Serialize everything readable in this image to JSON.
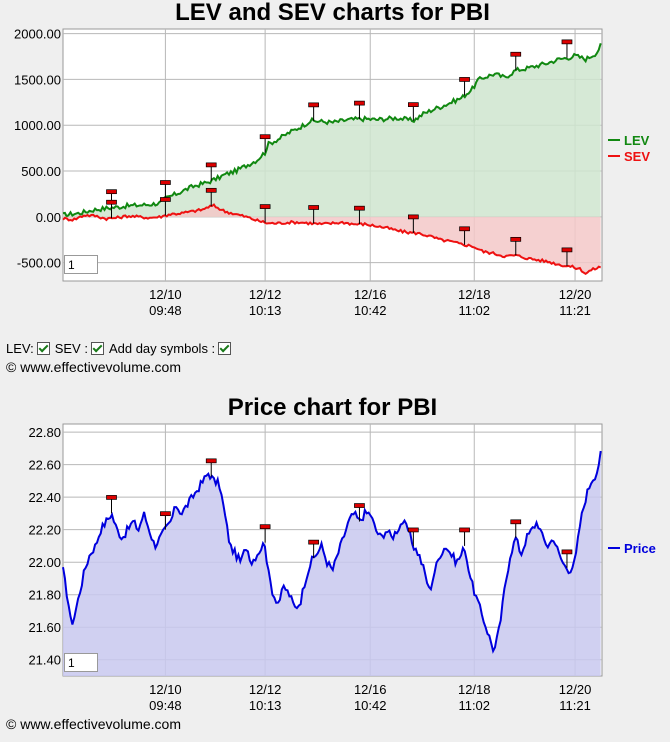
{
  "chart_data": [
    {
      "type": "line",
      "title": "LEV and SEV charts for PBI",
      "ylim": [
        -700,
        2050
      ],
      "yticks": [
        -500,
        0,
        500,
        1000,
        1500,
        2000
      ],
      "ytick_labels": [
        "-500.00",
        "0.00",
        "500.00",
        "1000.00",
        "1500.00",
        "2000.00"
      ],
      "xticks": [
        {
          "date": "12/10",
          "time": "09:48"
        },
        {
          "date": "12/12",
          "time": "10:13"
        },
        {
          "date": "12/16",
          "time": "10:42"
        },
        {
          "date": "12/18",
          "time": "11:02"
        },
        {
          "date": "12/20",
          "time": "11:21"
        }
      ],
      "x_range": [
        0,
        100
      ],
      "xtick_positions": [
        19,
        37.5,
        57,
        76.3,
        95
      ],
      "zoom_value": "1",
      "series": [
        {
          "name": "LEV",
          "color": "#118811",
          "fill": "#cfe5cf",
          "points": [
            [
              0,
              20
            ],
            [
              3,
              40
            ],
            [
              6,
              80
            ],
            [
              9,
              100
            ],
            [
              12,
              120
            ],
            [
              15,
              130
            ],
            [
              18,
              150
            ],
            [
              19,
              200
            ],
            [
              21,
              250
            ],
            [
              24,
              330
            ],
            [
              27,
              380
            ],
            [
              29,
              430
            ],
            [
              30,
              460
            ],
            [
              32,
              500
            ],
            [
              34,
              560
            ],
            [
              36,
              620
            ],
            [
              37,
              680
            ],
            [
              37.5,
              700
            ],
            [
              38,
              790
            ],
            [
              40,
              850
            ],
            [
              42,
              920
            ],
            [
              44,
              980
            ],
            [
              46,
              1050
            ],
            [
              48,
              1040
            ],
            [
              50,
              1030
            ],
            [
              53,
              1060
            ],
            [
              56,
              1070
            ],
            [
              58,
              1060
            ],
            [
              60,
              1070
            ],
            [
              62,
              1080
            ],
            [
              64,
              1060
            ],
            [
              65,
              1050
            ],
            [
              67,
              1130
            ],
            [
              69,
              1180
            ],
            [
              70,
              1200
            ],
            [
              72,
              1250
            ],
            [
              74,
              1300
            ],
            [
              76,
              1400
            ],
            [
              77,
              1490
            ],
            [
              78,
              1520
            ],
            [
              80,
              1560
            ],
            [
              82,
              1520
            ],
            [
              84,
              1600
            ],
            [
              86,
              1620
            ],
            [
              88,
              1650
            ],
            [
              90,
              1680
            ],
            [
              92,
              1720
            ],
            [
              94,
              1740
            ],
            [
              95,
              1760
            ],
            [
              97,
              1720
            ],
            [
              99,
              1790
            ],
            [
              100,
              1900
            ]
          ]
        },
        {
          "name": "SEV",
          "color": "#ee1111",
          "fill": "#f3c8c8",
          "points": [
            [
              0,
              -20
            ],
            [
              2,
              -30
            ],
            [
              4,
              20
            ],
            [
              6,
              10
            ],
            [
              8,
              -20
            ],
            [
              10,
              -10
            ],
            [
              12,
              10
            ],
            [
              14,
              0
            ],
            [
              16,
              -10
            ],
            [
              18,
              0
            ],
            [
              20,
              30
            ],
            [
              22,
              40
            ],
            [
              24,
              60
            ],
            [
              26,
              80
            ],
            [
              27,
              110
            ],
            [
              28,
              120
            ],
            [
              29,
              90
            ],
            [
              30,
              60
            ],
            [
              32,
              30
            ],
            [
              34,
              0
            ],
            [
              36,
              -40
            ],
            [
              38,
              -70
            ],
            [
              40,
              -70
            ],
            [
              42,
              -60
            ],
            [
              44,
              -60
            ],
            [
              46,
              -70
            ],
            [
              48,
              -80
            ],
            [
              50,
              -70
            ],
            [
              52,
              -60
            ],
            [
              54,
              -80
            ],
            [
              56,
              -80
            ],
            [
              58,
              -100
            ],
            [
              60,
              -120
            ],
            [
              62,
              -150
            ],
            [
              64,
              -170
            ],
            [
              66,
              -180
            ],
            [
              68,
              -210
            ],
            [
              70,
              -250
            ],
            [
              72,
              -270
            ],
            [
              74,
              -300
            ],
            [
              76,
              -320
            ],
            [
              78,
              -380
            ],
            [
              80,
              -400
            ],
            [
              82,
              -430
            ],
            [
              84,
              -420
            ],
            [
              86,
              -450
            ],
            [
              88,
              -470
            ],
            [
              90,
              -490
            ],
            [
              92,
              -520
            ],
            [
              94,
              -540
            ],
            [
              96,
              -570
            ],
            [
              97,
              -620
            ],
            [
              98,
              -580
            ],
            [
              100,
              -540
            ]
          ]
        }
      ],
      "day_markers": [
        {
          "series": "LEV",
          "x": [
            9,
            19,
            27.5,
            37.5,
            46.5,
            55,
            65,
            74.5,
            84,
            93.5
          ]
        },
        {
          "series": "SEV",
          "x": [
            9,
            19,
            27.5,
            37.5,
            46.5,
            55,
            65,
            74.5,
            84,
            93.5
          ]
        }
      ],
      "legend": "right",
      "grid": true
    },
    {
      "type": "area",
      "title": "Price chart for PBI",
      "ylim": [
        21.3,
        22.85
      ],
      "yticks": [
        21.4,
        21.6,
        21.8,
        22.0,
        22.2,
        22.4,
        22.6,
        22.8
      ],
      "ytick_labels": [
        "21.40",
        "21.60",
        "21.80",
        "22.00",
        "22.20",
        "22.40",
        "22.60",
        "22.80"
      ],
      "xticks": [
        {
          "date": "12/10",
          "time": "09:48"
        },
        {
          "date": "12/12",
          "time": "10:13"
        },
        {
          "date": "12/16",
          "time": "10:42"
        },
        {
          "date": "12/18",
          "time": "11:02"
        },
        {
          "date": "12/20",
          "time": "11:21"
        }
      ],
      "x_range": [
        0,
        100
      ],
      "xtick_positions": [
        19,
        37.5,
        57,
        76.3,
        95
      ],
      "zoom_value": "1",
      "series": [
        {
          "name": "Price",
          "color": "#0000dd",
          "fill": "#c8c8ee",
          "points": [
            [
              0,
              21.95
            ],
            [
              1,
              21.75
            ],
            [
              1.5,
              21.62
            ],
            [
              2,
              21.65
            ],
            [
              3,
              21.8
            ],
            [
              4,
              21.95
            ],
            [
              5,
              22.05
            ],
            [
              6,
              22.1
            ],
            [
              7,
              22.2
            ],
            [
              8,
              22.25
            ],
            [
              9,
              22.3
            ],
            [
              10,
              22.2
            ],
            [
              11,
              22.15
            ],
            [
              12,
              22.2
            ],
            [
              13,
              22.25
            ],
            [
              14,
              22.2
            ],
            [
              15,
              22.3
            ],
            [
              16,
              22.2
            ],
            [
              17,
              22.1
            ],
            [
              18,
              22.15
            ],
            [
              19,
              22.2
            ],
            [
              20,
              22.25
            ],
            [
              21,
              22.35
            ],
            [
              22,
              22.3
            ],
            [
              23,
              22.35
            ],
            [
              24,
              22.4
            ],
            [
              25,
              22.45
            ],
            [
              26,
              22.5
            ],
            [
              27,
              22.55
            ],
            [
              28,
              22.5
            ],
            [
              29,
              22.48
            ],
            [
              30,
              22.3
            ],
            [
              31,
              22.1
            ],
            [
              32,
              22.05
            ],
            [
              33,
              22.0
            ],
            [
              34,
              22.1
            ],
            [
              35,
              22.0
            ],
            [
              36,
              22.05
            ],
            [
              37,
              22.1
            ],
            [
              37.5,
              22.12
            ],
            [
              38,
              21.95
            ],
            [
              39,
              21.8
            ],
            [
              40,
              21.75
            ],
            [
              41,
              21.85
            ],
            [
              42,
              21.8
            ],
            [
              43,
              21.72
            ],
            [
              44,
              21.75
            ],
            [
              45,
              21.9
            ],
            [
              46,
              22.0
            ],
            [
              47,
              22.05
            ],
            [
              48,
              22.1
            ],
            [
              49,
              22.0
            ],
            [
              50,
              21.95
            ],
            [
              51,
              22.05
            ],
            [
              52,
              22.15
            ],
            [
              53,
              22.25
            ],
            [
              54,
              22.3
            ],
            [
              55,
              22.25
            ],
            [
              56,
              22.3
            ],
            [
              57,
              22.3
            ],
            [
              58,
              22.2
            ],
            [
              59,
              22.15
            ],
            [
              60,
              22.2
            ],
            [
              61,
              22.15
            ],
            [
              62,
              22.2
            ],
            [
              63,
              22.25
            ],
            [
              64,
              22.2
            ],
            [
              65,
              22.1
            ],
            [
              66,
              22.05
            ],
            [
              67,
              21.95
            ],
            [
              68,
              21.82
            ],
            [
              69,
              21.95
            ],
            [
              70,
              22.05
            ],
            [
              71,
              22.1
            ],
            [
              72,
              22.05
            ],
            [
              73,
              22.0
            ],
            [
              74,
              22.05
            ],
            [
              74.5,
              22.1
            ],
            [
              75,
              22.0
            ],
            [
              76,
              21.85
            ],
            [
              77,
              21.75
            ],
            [
              78,
              21.65
            ],
            [
              79,
              21.55
            ],
            [
              80,
              21.45
            ],
            [
              81,
              21.6
            ],
            [
              82,
              21.85
            ],
            [
              83,
              22.05
            ],
            [
              84,
              22.15
            ],
            [
              85,
              22.05
            ],
            [
              86,
              22.15
            ],
            [
              87,
              22.2
            ],
            [
              88,
              22.25
            ],
            [
              89,
              22.15
            ],
            [
              90,
              22.1
            ],
            [
              91,
              22.15
            ],
            [
              92,
              22.05
            ],
            [
              93,
              21.98
            ],
            [
              94,
              21.95
            ],
            [
              95,
              22.0
            ],
            [
              96,
              22.25
            ],
            [
              97,
              22.4
            ],
            [
              98,
              22.5
            ],
            [
              99,
              22.55
            ],
            [
              100,
              22.7
            ]
          ]
        }
      ],
      "day_markers": [
        {
          "series": "Price",
          "x": [
            9,
            19,
            27.5,
            37.5,
            46.5,
            55,
            65,
            74.5,
            84,
            93.5
          ]
        }
      ],
      "legend": "right",
      "grid": true
    }
  ],
  "controls": {
    "lev_label": "LEV:",
    "sev_label": "SEV :",
    "day_symbols_label": "Add day symbols :"
  },
  "copyright": "© www.effectivevolume.com"
}
